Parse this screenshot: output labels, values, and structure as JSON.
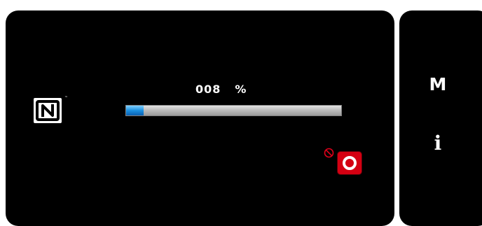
{
  "progress": {
    "value_text": "008",
    "unit": "%",
    "fraction": 0.08
  },
  "nfc": {
    "icon": "nfc-n-mark-icon",
    "trademark": "™"
  },
  "stop_button": {
    "icon": "record-stop-icon",
    "color": "#d40012"
  },
  "prohibit_indicator": {
    "icon": "prohibit-icon",
    "color": "#e0001a"
  },
  "side_panel": {
    "mode_label": "M",
    "info_label": "i"
  },
  "colors": {
    "background": "#000000",
    "progress_fill": "#1a8fe0",
    "progress_track": "#c0c0c0"
  }
}
